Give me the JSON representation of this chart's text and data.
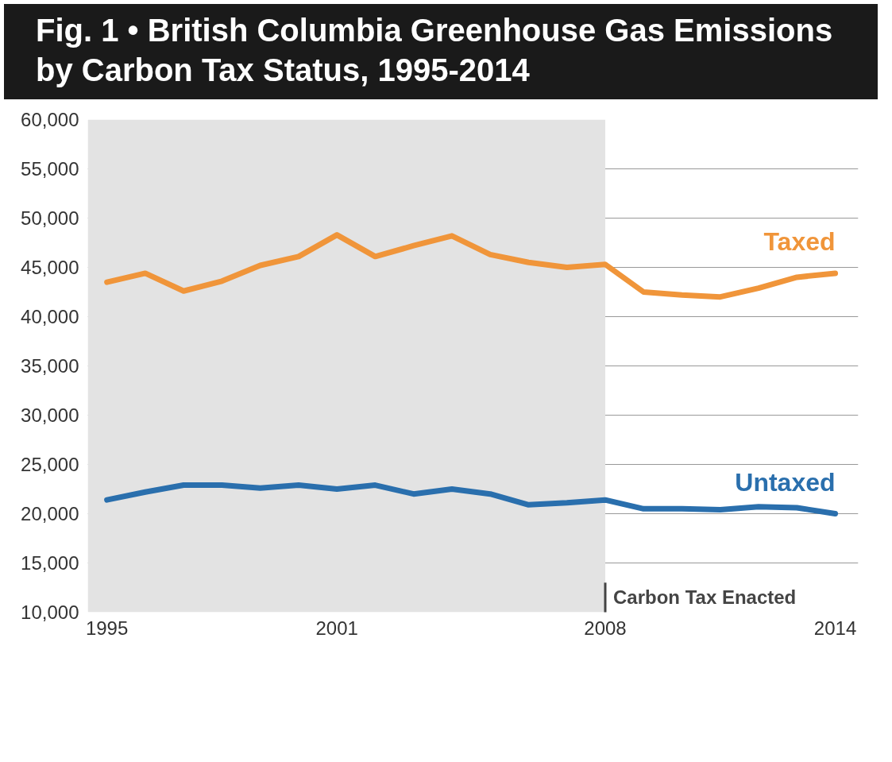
{
  "chart_data": {
    "type": "line",
    "title": "Fig. 1 • British Columbia Greenhouse Gas Emissions by Carbon Tax Status, 1995-2014",
    "x": [
      1995,
      1996,
      1997,
      1998,
      1999,
      2000,
      2001,
      2002,
      2003,
      2004,
      2005,
      2006,
      2007,
      2008,
      2009,
      2010,
      2011,
      2012,
      2013,
      2014
    ],
    "series": [
      {
        "name": "Taxed",
        "color": "#f0953a",
        "values": [
          43500,
          44400,
          42600,
          43600,
          45200,
          46100,
          48300,
          46100,
          47200,
          48200,
          46300,
          45500,
          45000,
          45300,
          42500,
          42200,
          42000,
          42900,
          44000,
          44400
        ]
      },
      {
        "name": "Untaxed",
        "color": "#2a6fad",
        "values": [
          21400,
          22200,
          22900,
          22900,
          22600,
          22900,
          22500,
          22900,
          22000,
          22500,
          22000,
          20900,
          21100,
          21400,
          20500,
          20500,
          20400,
          20700,
          20600,
          20000
        ]
      }
    ],
    "xlim": [
      1994.5,
      2014.6
    ],
    "xticks": [
      1995,
      2001,
      2008,
      2014
    ],
    "ylim": [
      10000,
      60000
    ],
    "yticks": [
      {
        "value": 10000,
        "label": "10,000"
      },
      {
        "value": 15000,
        "label": "15,000"
      },
      {
        "value": 20000,
        "label": "20,000"
      },
      {
        "value": 25000,
        "label": "25,000"
      },
      {
        "value": 30000,
        "label": "30,000"
      },
      {
        "value": 35000,
        "label": "35,000"
      },
      {
        "value": 40000,
        "label": "40,000"
      },
      {
        "value": 45000,
        "label": "45,000"
      },
      {
        "value": 50000,
        "label": "50,000"
      },
      {
        "value": 55000,
        "label": "55,000"
      },
      {
        "value": 60000,
        "label": "60,000"
      }
    ],
    "grid": "y",
    "marker": "none",
    "line_style": "solid",
    "bands": [
      {
        "axis": "x",
        "from": 1994.5,
        "to": 2008,
        "color": "#e3e3e3"
      }
    ],
    "ref_lines": [
      {
        "axis": "x",
        "value": 2008,
        "label": "Carbon Tax Enacted",
        "color": "#444444"
      }
    ]
  }
}
